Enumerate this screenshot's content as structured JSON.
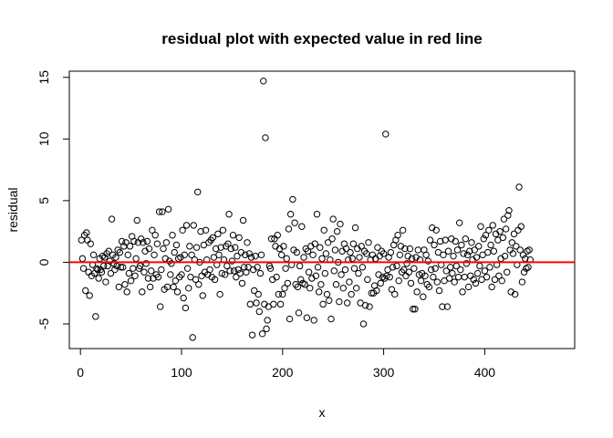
{
  "chart_data": {
    "type": "scatter",
    "title": "residual plot with expected value in red line",
    "xlabel": "x",
    "ylabel": "residual",
    "xlim": [
      -11,
      489
    ],
    "ylim": [
      -7,
      15.5
    ],
    "x_ticks": [
      0,
      100,
      200,
      300,
      400
    ],
    "y_ticks": [
      -5,
      0,
      5,
      10,
      15
    ],
    "x_tick_labels": [
      "0",
      "100",
      "200",
      "300",
      "400"
    ],
    "y_tick_labels": [
      "-5",
      "0",
      "5",
      "10",
      "15"
    ],
    "grid": false,
    "legend": "none",
    "reference_line": {
      "y": 0,
      "color": "#ff0000"
    },
    "point_style": {
      "fill": "none",
      "stroke": "#000000"
    },
    "points": [
      [
        1,
        1.8
      ],
      [
        2,
        0.3
      ],
      [
        3,
        -0.5
      ],
      [
        4,
        2.2
      ],
      [
        5,
        -2.3
      ],
      [
        6,
        2.4
      ],
      [
        7,
        1.8
      ],
      [
        8,
        -0.8
      ],
      [
        9,
        -2.7
      ],
      [
        10,
        1.5
      ],
      [
        11,
        -1.1
      ],
      [
        12,
        -0.2
      ],
      [
        13,
        0.6
      ],
      [
        14,
        -0.9
      ],
      [
        15,
        -4.4
      ],
      [
        16,
        -0.5
      ],
      [
        17,
        -0.6
      ],
      [
        18,
        -1.3
      ],
      [
        19,
        0.3
      ],
      [
        20,
        -0.6
      ],
      [
        21,
        -0.8
      ],
      [
        22,
        0.5
      ],
      [
        23,
        -0.3
      ],
      [
        24,
        0.4
      ],
      [
        25,
        -1.6
      ],
      [
        26,
        0.7
      ],
      [
        27,
        -0.3
      ],
      [
        28,
        0.9
      ],
      [
        29,
        0.1
      ],
      [
        30,
        -0.9
      ],
      [
        31,
        3.5
      ],
      [
        32,
        0.6
      ],
      [
        33,
        -0.1
      ],
      [
        34,
        -0.6
      ],
      [
        35,
        0.4
      ],
      [
        36,
        -0.3
      ],
      [
        37,
        1.0
      ],
      [
        38,
        -2.0
      ],
      [
        39,
        0.8
      ],
      [
        40,
        -0.4
      ],
      [
        41,
        1.7
      ],
      [
        42,
        -0.4
      ],
      [
        43,
        1.3
      ],
      [
        44,
        -1.8
      ],
      [
        45,
        1.6
      ],
      [
        46,
        -2.4
      ],
      [
        47,
        0.6
      ],
      [
        48,
        -0.9
      ],
      [
        49,
        1.3
      ],
      [
        50,
        -1.5
      ],
      [
        51,
        2.1
      ],
      [
        52,
        -0.5
      ],
      [
        53,
        1.7
      ],
      [
        54,
        -1.1
      ],
      [
        55,
        0.3
      ],
      [
        56,
        3.4
      ],
      [
        57,
        1.6
      ],
      [
        58,
        -0.5
      ],
      [
        59,
        -0.3
      ],
      [
        60,
        1.9
      ],
      [
        61,
        -2.4
      ],
      [
        62,
        1.6
      ],
      [
        63,
        -0.8
      ],
      [
        64,
        0.9
      ],
      [
        65,
        -0.1
      ],
      [
        66,
        1.7
      ],
      [
        67,
        -1.3
      ],
      [
        68,
        1.1
      ],
      [
        69,
        -2.0
      ],
      [
        70,
        -0.7
      ],
      [
        71,
        2.6
      ],
      [
        72,
        -1.3
      ],
      [
        73,
        0.6
      ],
      [
        74,
        2.2
      ],
      [
        75,
        -1.0
      ],
      [
        76,
        1.5
      ],
      [
        77,
        -1.2
      ],
      [
        78,
        4.1
      ],
      [
        79,
        -3.6
      ],
      [
        80,
        -0.6
      ],
      [
        81,
        4.1
      ],
      [
        82,
        1.1
      ],
      [
        83,
        -2.2
      ],
      [
        84,
        0.3
      ],
      [
        85,
        1.6
      ],
      [
        86,
        -2.0
      ],
      [
        87,
        4.3
      ],
      [
        88,
        0.1
      ],
      [
        89,
        -1.0
      ],
      [
        90,
        -0.1
      ],
      [
        91,
        2.2
      ],
      [
        92,
        -2.0
      ],
      [
        93,
        0.8
      ],
      [
        94,
        -1.5
      ],
      [
        95,
        1.4
      ],
      [
        96,
        -2.4
      ],
      [
        97,
        0.3
      ],
      [
        98,
        -1.2
      ],
      [
        99,
        0.4
      ],
      [
        100,
        -1.0
      ],
      [
        101,
        2.6
      ],
      [
        102,
        -2.9
      ],
      [
        103,
        0.6
      ],
      [
        104,
        -3.7
      ],
      [
        105,
        3.0
      ],
      [
        106,
        -0.5
      ],
      [
        107,
        -2.1
      ],
      [
        108,
        1.3
      ],
      [
        109,
        -1.2
      ],
      [
        110,
        0.6
      ],
      [
        111,
        -6.1
      ],
      [
        112,
        3.0
      ],
      [
        113,
        0.2
      ],
      [
        114,
        -1.4
      ],
      [
        115,
        1.2
      ],
      [
        116,
        5.7
      ],
      [
        117,
        -1.8
      ],
      [
        118,
        0.0
      ],
      [
        119,
        2.5
      ],
      [
        120,
        -1.1
      ],
      [
        121,
        -2.7
      ],
      [
        122,
        1.4
      ],
      [
        123,
        -0.8
      ],
      [
        124,
        2.6
      ],
      [
        125,
        0.2
      ],
      [
        126,
        -1.0
      ],
      [
        127,
        1.6
      ],
      [
        128,
        -0.6
      ],
      [
        129,
        1.8
      ],
      [
        130,
        -1.2
      ],
      [
        131,
        2.0
      ],
      [
        132,
        0.4
      ],
      [
        133,
        -1.4
      ],
      [
        134,
        1.1
      ],
      [
        135,
        -0.2
      ],
      [
        136,
        2.3
      ],
      [
        137,
        0.6
      ],
      [
        138,
        -2.6
      ],
      [
        139,
        1.2
      ],
      [
        140,
        -0.9
      ],
      [
        141,
        2.6
      ],
      [
        142,
        0.2
      ],
      [
        143,
        -1.0
      ],
      [
        144,
        1.3
      ],
      [
        145,
        -0.3
      ],
      [
        146,
        1.5
      ],
      [
        147,
        3.9
      ],
      [
        148,
        -0.7
      ],
      [
        149,
        1.1
      ],
      [
        150,
        0.1
      ],
      [
        151,
        2.2
      ],
      [
        152,
        -0.7
      ],
      [
        153,
        1.2
      ],
      [
        154,
        -1.2
      ],
      [
        155,
        0.5
      ],
      [
        156,
        -0.6
      ],
      [
        157,
        2.0
      ],
      [
        158,
        -0.9
      ],
      [
        159,
        0.8
      ],
      [
        160,
        -1.7
      ],
      [
        161,
        3.4
      ],
      [
        162,
        -0.4
      ],
      [
        163,
        0.6
      ],
      [
        164,
        -0.8
      ],
      [
        165,
        1.6
      ],
      [
        166,
        -0.4
      ],
      [
        167,
        0.7
      ],
      [
        168,
        -3.4
      ],
      [
        169,
        0.4
      ],
      [
        170,
        -5.9
      ],
      [
        171,
        -0.6
      ],
      [
        172,
        -2.3
      ],
      [
        173,
        0.5
      ],
      [
        174,
        -3.3
      ],
      [
        175,
        -0.4
      ],
      [
        176,
        -2.6
      ],
      [
        177,
        -4.0
      ],
      [
        178,
        -0.9
      ],
      [
        179,
        0.6
      ],
      [
        180,
        -5.8
      ],
      [
        181,
        14.7
      ],
      [
        182,
        -3.4
      ],
      [
        183,
        10.1
      ],
      [
        184,
        -5.4
      ],
      [
        185,
        -4.7
      ],
      [
        186,
        -3.6
      ],
      [
        187,
        -0.3
      ],
      [
        188,
        -0.5
      ],
      [
        189,
        1.9
      ],
      [
        190,
        -1.4
      ],
      [
        191,
        -3.4
      ],
      [
        192,
        1.9
      ],
      [
        193,
        1.3
      ],
      [
        194,
        -1.2
      ],
      [
        195,
        2.2
      ],
      [
        196,
        -2.6
      ],
      [
        197,
        1.1
      ],
      [
        198,
        -3.4
      ],
      [
        199,
        0.6
      ],
      [
        200,
        -2.6
      ],
      [
        201,
        1.3
      ],
      [
        202,
        -2.1
      ],
      [
        203,
        -0.5
      ],
      [
        204,
        0.3
      ],
      [
        205,
        -1.7
      ],
      [
        206,
        2.7
      ],
      [
        207,
        -4.6
      ],
      [
        208,
        3.9
      ],
      [
        209,
        -0.2
      ],
      [
        210,
        5.1
      ],
      [
        211,
        1.0
      ],
      [
        212,
        3.2
      ],
      [
        213,
        -1.8
      ],
      [
        214,
        0.8
      ],
      [
        215,
        -2.0
      ],
      [
        216,
        -4.1
      ],
      [
        217,
        -0.3
      ],
      [
        218,
        -1.4
      ],
      [
        219,
        2.9
      ],
      [
        220,
        -1.7
      ],
      [
        221,
        0.4
      ],
      [
        222,
        -1.8
      ],
      [
        223,
        1.1
      ],
      [
        224,
        -4.5
      ],
      [
        225,
        0.9
      ],
      [
        226,
        -0.8
      ],
      [
        227,
        -2.1
      ],
      [
        228,
        1.3
      ],
      [
        229,
        -1.3
      ],
      [
        230,
        0.6
      ],
      [
        231,
        -4.7
      ],
      [
        232,
        1.5
      ],
      [
        233,
        -1.1
      ],
      [
        234,
        3.9
      ],
      [
        235,
        -0.4
      ],
      [
        236,
        -2.4
      ],
      [
        237,
        1.2
      ],
      [
        238,
        -1.8
      ],
      [
        239,
        0.3
      ],
      [
        240,
        -3.4
      ],
      [
        241,
        2.6
      ],
      [
        242,
        -0.9
      ],
      [
        243,
        0.7
      ],
      [
        244,
        -2.6
      ],
      [
        245,
        1.6
      ],
      [
        246,
        -3.1
      ],
      [
        247,
        0.2
      ],
      [
        248,
        -4.6
      ],
      [
        249,
        1.9
      ],
      [
        250,
        3.5
      ],
      [
        251,
        -0.7
      ],
      [
        252,
        1.0
      ],
      [
        253,
        -1.8
      ],
      [
        254,
        2.5
      ],
      [
        255,
        0.0
      ],
      [
        256,
        -3.2
      ],
      [
        257,
        3.1
      ],
      [
        258,
        -1.0
      ],
      [
        259,
        0.9
      ],
      [
        260,
        -2.1
      ],
      [
        261,
        1.5
      ],
      [
        262,
        -0.6
      ],
      [
        263,
        1.1
      ],
      [
        264,
        -3.3
      ],
      [
        265,
        0.2
      ],
      [
        266,
        -1.6
      ],
      [
        267,
        0.8
      ],
      [
        268,
        -2.6
      ],
      [
        269,
        0.3
      ],
      [
        270,
        1.5
      ],
      [
        271,
        -0.5
      ],
      [
        272,
        2.8
      ],
      [
        273,
        -2.1
      ],
      [
        274,
        1.1
      ],
      [
        275,
        -0.9
      ],
      [
        276,
        0.4
      ],
      [
        277,
        -3.3
      ],
      [
        278,
        1.3
      ],
      [
        279,
        -0.4
      ],
      [
        280,
        -5.0
      ],
      [
        281,
        0.9
      ],
      [
        282,
        -3.5
      ],
      [
        283,
        0.7
      ],
      [
        284,
        -1.4
      ],
      [
        285,
        1.6
      ],
      [
        286,
        -3.6
      ],
      [
        287,
        0.2
      ],
      [
        288,
        -2.5
      ],
      [
        289,
        0.6
      ],
      [
        290,
        -2.5
      ],
      [
        291,
        -1.9
      ],
      [
        292,
        0.3
      ],
      [
        293,
        -2.3
      ],
      [
        294,
        1.2
      ],
      [
        295,
        -1.0
      ],
      [
        296,
        0.5
      ],
      [
        297,
        -1.7
      ],
      [
        298,
        0.9
      ],
      [
        299,
        -1.2
      ],
      [
        300,
        0.7
      ],
      [
        301,
        -1.3
      ],
      [
        302,
        10.4
      ],
      [
        303,
        -1.1
      ],
      [
        304,
        -0.6
      ],
      [
        305,
        0.4
      ],
      [
        306,
        -1.2
      ],
      [
        307,
        0.8
      ],
      [
        308,
        -2.2
      ],
      [
        309,
        -0.4
      ],
      [
        310,
        1.4
      ],
      [
        311,
        -2.6
      ],
      [
        312,
        1.8
      ],
      [
        313,
        -0.3
      ],
      [
        314,
        2.2
      ],
      [
        315,
        -1.5
      ],
      [
        316,
        0.6
      ],
      [
        317,
        1.3
      ],
      [
        318,
        -0.8
      ],
      [
        319,
        2.6
      ],
      [
        320,
        -0.6
      ],
      [
        321,
        1.1
      ],
      [
        322,
        -1.1
      ],
      [
        323,
        -0.1
      ],
      [
        324,
        0.5
      ],
      [
        325,
        -0.8
      ],
      [
        326,
        1.1
      ],
      [
        327,
        -1.7
      ],
      [
        328,
        0.3
      ],
      [
        329,
        -3.8
      ],
      [
        330,
        -0.5
      ],
      [
        331,
        -3.8
      ],
      [
        332,
        0.4
      ],
      [
        333,
        -2.4
      ],
      [
        334,
        1.0
      ],
      [
        335,
        -1.0
      ],
      [
        336,
        0.2
      ],
      [
        337,
        -1.5
      ],
      [
        338,
        -0.9
      ],
      [
        339,
        -2.8
      ],
      [
        340,
        1.0
      ],
      [
        341,
        -1.1
      ],
      [
        342,
        0.6
      ],
      [
        343,
        -1.8
      ],
      [
        344,
        0.1
      ],
      [
        345,
        -2.0
      ],
      [
        346,
        1.8
      ],
      [
        347,
        -0.6
      ],
      [
        348,
        2.8
      ],
      [
        349,
        -1.2
      ],
      [
        350,
        1.4
      ],
      [
        351,
        -0.5
      ],
      [
        352,
        2.6
      ],
      [
        353,
        -1.6
      ],
      [
        354,
        0.8
      ],
      [
        355,
        -2.3
      ],
      [
        356,
        1.7
      ],
      [
        357,
        -0.2
      ],
      [
        358,
        -3.6
      ],
      [
        359,
        0.6
      ],
      [
        360,
        -1.5
      ],
      [
        361,
        1.8
      ],
      [
        362,
        -0.7
      ],
      [
        363,
        -3.6
      ],
      [
        364,
        0.9
      ],
      [
        365,
        -1.3
      ],
      [
        366,
        -0.4
      ],
      [
        367,
        1.9
      ],
      [
        368,
        -0.9
      ],
      [
        369,
        0.5
      ],
      [
        370,
        -1.6
      ],
      [
        371,
        1.7
      ],
      [
        372,
        -0.3
      ],
      [
        373,
        1.0
      ],
      [
        374,
        -1.2
      ],
      [
        375,
        3.2
      ],
      [
        376,
        -0.6
      ],
      [
        377,
        1.4
      ],
      [
        378,
        -2.4
      ],
      [
        379,
        0.7
      ],
      [
        380,
        -1.2
      ],
      [
        381,
        1.9
      ],
      [
        382,
        -0.1
      ],
      [
        383,
        0.6
      ],
      [
        384,
        -2.0
      ],
      [
        385,
        0.9
      ],
      [
        386,
        -1.1
      ],
      [
        387,
        1.6
      ],
      [
        388,
        0.2
      ],
      [
        389,
        -1.4
      ],
      [
        390,
        1.0
      ],
      [
        391,
        -1.7
      ],
      [
        392,
        0.4
      ],
      [
        393,
        -0.9
      ],
      [
        394,
        1.3
      ],
      [
        395,
        -0.3
      ],
      [
        396,
        2.9
      ],
      [
        397,
        -1.4
      ],
      [
        398,
        0.6
      ],
      [
        399,
        1.9
      ],
      [
        400,
        -0.7
      ],
      [
        401,
        2.2
      ],
      [
        402,
        -1.2
      ],
      [
        403,
        0.8
      ],
      [
        404,
        2.6
      ],
      [
        405,
        -0.4
      ],
      [
        406,
        1.4
      ],
      [
        407,
        -2.0
      ],
      [
        408,
        3.0
      ],
      [
        409,
        0.9
      ],
      [
        410,
        -1.4
      ],
      [
        411,
        2.3
      ],
      [
        412,
        -0.2
      ],
      [
        413,
        1.8
      ],
      [
        414,
        -1.1
      ],
      [
        415,
        2.5
      ],
      [
        416,
        0.3
      ],
      [
        417,
        -1.5
      ],
      [
        418,
        2.0
      ],
      [
        419,
        3.5
      ],
      [
        420,
        0.5
      ],
      [
        421,
        2.7
      ],
      [
        422,
        -0.8
      ],
      [
        423,
        3.8
      ],
      [
        424,
        4.2
      ],
      [
        425,
        1.0
      ],
      [
        426,
        -2.4
      ],
      [
        427,
        1.6
      ],
      [
        428,
        0.7
      ],
      [
        429,
        2.3
      ],
      [
        430,
        -2.6
      ],
      [
        431,
        1.3
      ],
      [
        432,
        -0.2
      ],
      [
        433,
        2.6
      ],
      [
        434,
        6.1
      ],
      [
        435,
        1.0
      ],
      [
        436,
        2.9
      ],
      [
        437,
        -1.6
      ],
      [
        438,
        0.6
      ],
      [
        439,
        -0.8
      ],
      [
        440,
        0.3
      ],
      [
        441,
        -0.5
      ],
      [
        442,
        0.9
      ],
      [
        443,
        -0.4
      ],
      [
        444,
        1.0
      ],
      [
        445,
        0.2
      ]
    ]
  }
}
